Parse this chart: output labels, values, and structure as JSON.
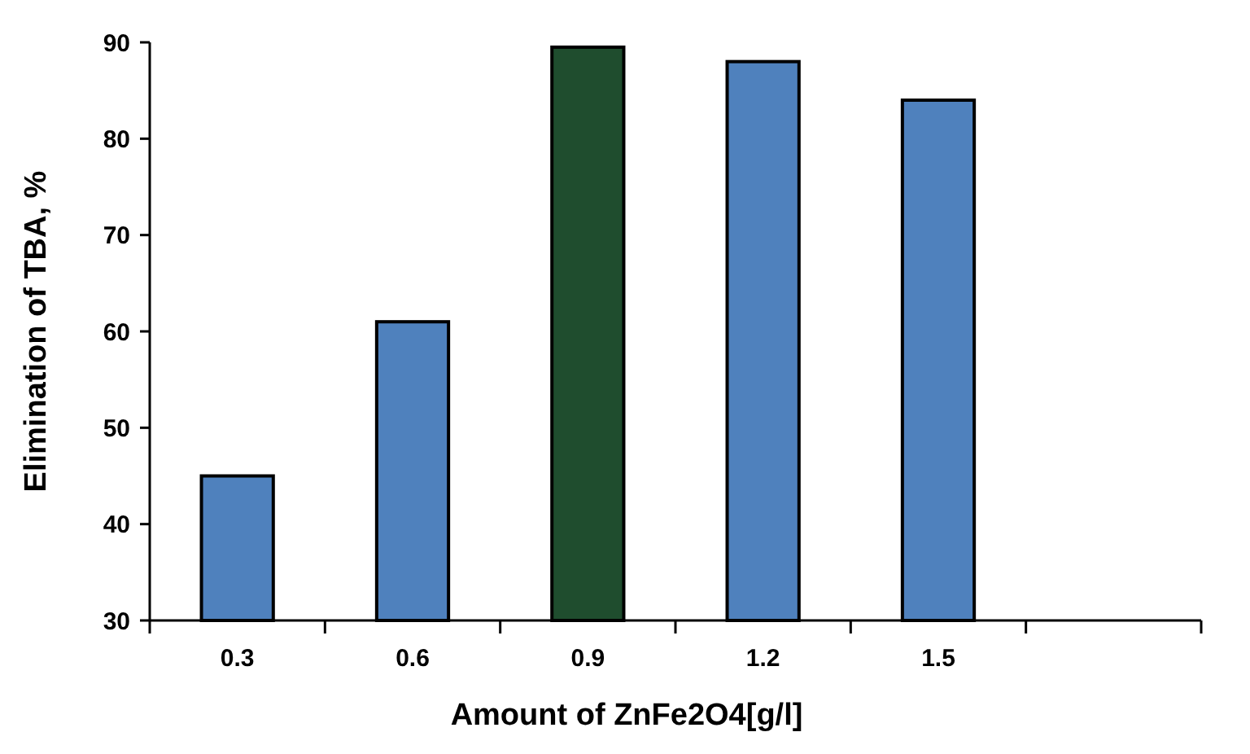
{
  "chart_data": {
    "type": "bar",
    "xlabel": "Amount of ZnFe2O4[g/l]",
    "ylabel": "Elimination of TBA, %",
    "categories": [
      "0.3",
      "0.6",
      "0.9",
      "1.2",
      "1.5",
      null
    ],
    "values": [
      45,
      61,
      89.5,
      88,
      84,
      null
    ],
    "colors": [
      "#4f81bd",
      "#4f81bd",
      "#1f4d2e",
      "#4f81bd",
      "#4f81bd",
      null
    ],
    "ylim": [
      30,
      90
    ],
    "yticks": [
      30,
      40,
      50,
      60,
      70,
      80,
      90
    ],
    "grid": false
  }
}
